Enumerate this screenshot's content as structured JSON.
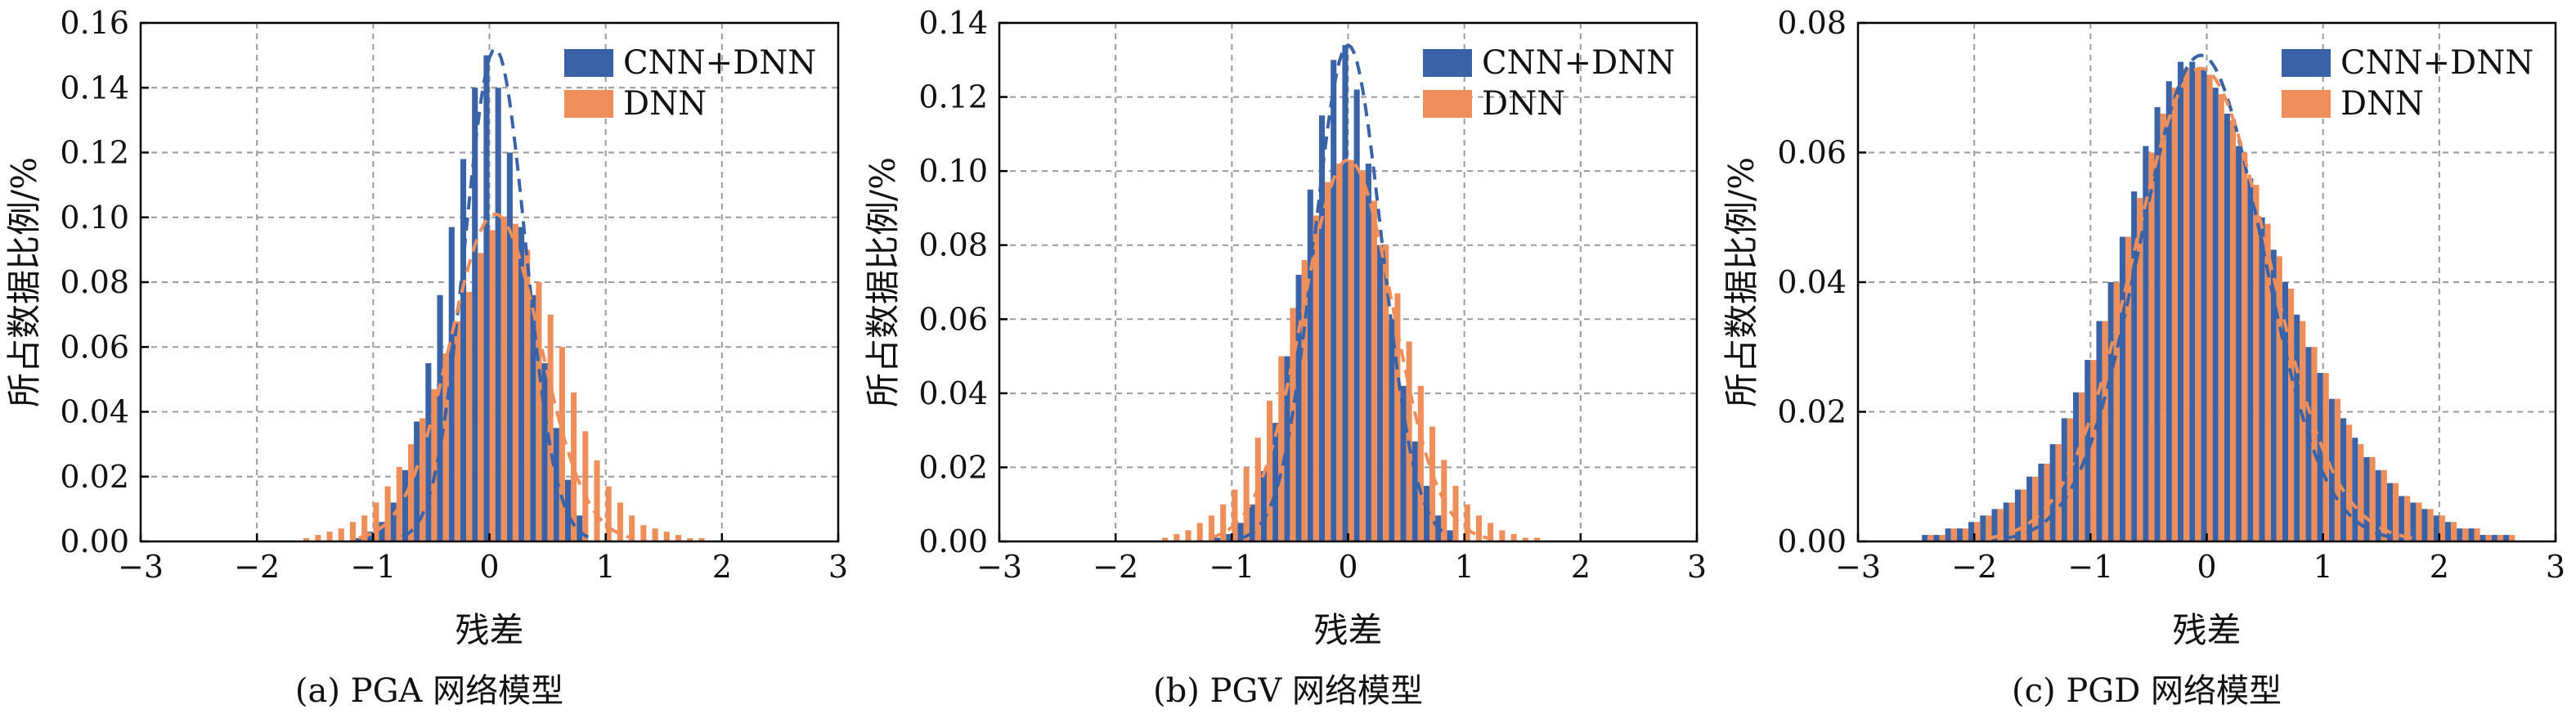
{
  "figure": {
    "panels": [
      {
        "caption": "(a) PGA 网络模型"
      },
      {
        "caption": "(b) PGV 网络模型"
      },
      {
        "caption": "(c) PGD 网络模型"
      }
    ]
  },
  "colors": {
    "cnn_dnn": "#3a62a7",
    "dnn": "#ee8f5b"
  },
  "chart_data": [
    {
      "type": "bar",
      "title": "",
      "xlabel": "残差",
      "ylabel": "所占数据比例/%",
      "xlim": [
        -3,
        3
      ],
      "ylim": [
        0,
        0.16
      ],
      "xticks": [
        "−3",
        "−2",
        "−1",
        "0",
        "1",
        "2",
        "3"
      ],
      "yticks": [
        "0.00",
        "0.02",
        "0.04",
        "0.06",
        "0.08",
        "0.10",
        "0.12",
        "0.14",
        "0.16"
      ],
      "grid": true,
      "legend_position": "top-right",
      "bin_width": 0.1,
      "series": [
        {
          "name": "CNN+DNN",
          "color": "#3a62a7",
          "x": [
            -1.1,
            -1.0,
            -0.9,
            -0.8,
            -0.7,
            -0.6,
            -0.5,
            -0.4,
            -0.3,
            -0.2,
            -0.1,
            0.0,
            0.1,
            0.2,
            0.3,
            0.4,
            0.5,
            0.6,
            0.7,
            0.8
          ],
          "values": [
            0.001,
            0.003,
            0.006,
            0.012,
            0.022,
            0.037,
            0.055,
            0.076,
            0.097,
            0.118,
            0.14,
            0.15,
            0.14,
            0.12,
            0.097,
            0.076,
            0.055,
            0.035,
            0.019,
            0.008
          ]
        },
        {
          "name": "DNN",
          "color": "#ee8f5b",
          "x": [
            -1.6,
            -1.5,
            -1.4,
            -1.3,
            -1.2,
            -1.1,
            -1.0,
            -0.9,
            -0.8,
            -0.7,
            -0.6,
            -0.5,
            -0.4,
            -0.3,
            -0.2,
            -0.1,
            0.0,
            0.1,
            0.2,
            0.3,
            0.4,
            0.5,
            0.6,
            0.7,
            0.8,
            0.9,
            1.0,
            1.1,
            1.2,
            1.3,
            1.4,
            1.5,
            1.6,
            1.7,
            1.8
          ],
          "values": [
            0.001,
            0.002,
            0.003,
            0.004,
            0.006,
            0.008,
            0.012,
            0.017,
            0.023,
            0.03,
            0.038,
            0.047,
            0.058,
            0.068,
            0.077,
            0.089,
            0.096,
            0.1,
            0.098,
            0.09,
            0.08,
            0.07,
            0.06,
            0.046,
            0.034,
            0.025,
            0.017,
            0.012,
            0.008,
            0.005,
            0.004,
            0.003,
            0.002,
            0.001,
            0.001
          ]
        }
      ],
      "fit_curves": [
        {
          "series": "CNN+DNN",
          "mean": 0.05,
          "sd": 0.26,
          "peak": 0.152
        },
        {
          "series": "DNN",
          "mean": 0.05,
          "sd": 0.39,
          "peak": 0.101
        }
      ]
    },
    {
      "type": "bar",
      "title": "",
      "xlabel": "残差",
      "ylabel": "所占数据比例/%",
      "xlim": [
        -3,
        3
      ],
      "ylim": [
        0,
        0.14
      ],
      "xticks": [
        "−3",
        "−2",
        "−1",
        "0",
        "1",
        "2",
        "3"
      ],
      "yticks": [
        "0.00",
        "0.02",
        "0.04",
        "0.06",
        "0.08",
        "0.10",
        "0.12",
        "0.14"
      ],
      "grid": true,
      "legend_position": "top-right",
      "bin_width": 0.1,
      "series": [
        {
          "name": "CNN+DNN",
          "color": "#3a62a7",
          "x": [
            -1.1,
            -1.0,
            -0.9,
            -0.8,
            -0.7,
            -0.6,
            -0.5,
            -0.4,
            -0.3,
            -0.2,
            -0.1,
            0.0,
            0.1,
            0.2,
            0.3,
            0.4,
            0.5,
            0.6,
            0.7,
            0.8,
            0.9
          ],
          "values": [
            0.001,
            0.002,
            0.005,
            0.01,
            0.019,
            0.032,
            0.05,
            0.072,
            0.095,
            0.115,
            0.13,
            0.134,
            0.122,
            0.102,
            0.08,
            0.06,
            0.042,
            0.027,
            0.015,
            0.007,
            0.003
          ]
        },
        {
          "name": "DNN",
          "color": "#ee8f5b",
          "x": [
            -1.6,
            -1.5,
            -1.4,
            -1.3,
            -1.2,
            -1.1,
            -1.0,
            -0.9,
            -0.8,
            -0.7,
            -0.6,
            -0.5,
            -0.4,
            -0.3,
            -0.2,
            -0.1,
            0.0,
            0.1,
            0.2,
            0.3,
            0.4,
            0.5,
            0.6,
            0.7,
            0.8,
            0.9,
            1.0,
            1.1,
            1.2,
            1.3,
            1.4,
            1.5,
            1.6
          ],
          "values": [
            0.001,
            0.002,
            0.003,
            0.005,
            0.007,
            0.01,
            0.014,
            0.02,
            0.028,
            0.038,
            0.05,
            0.063,
            0.076,
            0.088,
            0.097,
            0.102,
            0.103,
            0.1,
            0.092,
            0.08,
            0.067,
            0.054,
            0.042,
            0.031,
            0.022,
            0.015,
            0.01,
            0.007,
            0.005,
            0.003,
            0.002,
            0.001,
            0.001
          ]
        }
      ],
      "fit_curves": [
        {
          "series": "CNN+DNN",
          "mean": 0.0,
          "sd": 0.29,
          "peak": 0.134
        },
        {
          "series": "DNN",
          "mean": 0.0,
          "sd": 0.39,
          "peak": 0.103
        }
      ]
    },
    {
      "type": "bar",
      "title": "",
      "xlabel": "残差",
      "ylabel": "所占数据比例/%",
      "xlim": [
        -3,
        3
      ],
      "ylim": [
        0,
        0.08
      ],
      "xticks": [
        "−3",
        "−2",
        "−1",
        "0",
        "1",
        "2",
        "3"
      ],
      "yticks": [
        "0.00",
        "0.02",
        "0.04",
        "0.06",
        "0.08"
      ],
      "grid": true,
      "legend_position": "top-right",
      "bin_width": 0.1,
      "series": [
        {
          "name": "CNN+DNN",
          "color": "#3a62a7",
          "x": [
            -2.4,
            -2.3,
            -2.2,
            -2.1,
            -2.0,
            -1.9,
            -1.8,
            -1.7,
            -1.6,
            -1.5,
            -1.4,
            -1.3,
            -1.2,
            -1.1,
            -1.0,
            -0.9,
            -0.8,
            -0.7,
            -0.6,
            -0.5,
            -0.4,
            -0.3,
            -0.2,
            -0.1,
            0.0,
            0.1,
            0.2,
            0.3,
            0.4,
            0.5,
            0.6,
            0.7,
            0.8,
            0.9,
            1.0,
            1.1,
            1.2,
            1.3,
            1.4,
            1.5,
            1.6,
            1.7,
            1.8,
            1.9,
            2.0,
            2.1,
            2.2,
            2.3,
            2.4,
            2.5,
            2.6
          ],
          "values": [
            0.001,
            0.001,
            0.002,
            0.002,
            0.003,
            0.004,
            0.005,
            0.006,
            0.008,
            0.01,
            0.012,
            0.015,
            0.019,
            0.023,
            0.028,
            0.034,
            0.04,
            0.047,
            0.054,
            0.061,
            0.067,
            0.071,
            0.074,
            0.074,
            0.073,
            0.07,
            0.066,
            0.061,
            0.056,
            0.05,
            0.045,
            0.04,
            0.035,
            0.03,
            0.026,
            0.022,
            0.019,
            0.016,
            0.013,
            0.011,
            0.009,
            0.007,
            0.006,
            0.005,
            0.004,
            0.003,
            0.002,
            0.002,
            0.001,
            0.001,
            0.001
          ]
        },
        {
          "name": "DNN",
          "color": "#ee8f5b",
          "x": [
            -2.4,
            -2.3,
            -2.2,
            -2.1,
            -2.0,
            -1.9,
            -1.8,
            -1.7,
            -1.6,
            -1.5,
            -1.4,
            -1.3,
            -1.2,
            -1.1,
            -1.0,
            -0.9,
            -0.8,
            -0.7,
            -0.6,
            -0.5,
            -0.4,
            -0.3,
            -0.2,
            -0.1,
            0.0,
            0.1,
            0.2,
            0.3,
            0.4,
            0.5,
            0.6,
            0.7,
            0.8,
            0.9,
            1.0,
            1.1,
            1.2,
            1.3,
            1.4,
            1.5,
            1.6,
            1.7,
            1.8,
            1.9,
            2.0,
            2.1,
            2.2,
            2.3,
            2.4,
            2.5,
            2.6
          ],
          "values": [
            0.001,
            0.001,
            0.002,
            0.002,
            0.003,
            0.004,
            0.005,
            0.006,
            0.008,
            0.01,
            0.012,
            0.015,
            0.019,
            0.023,
            0.028,
            0.034,
            0.04,
            0.047,
            0.053,
            0.06,
            0.066,
            0.07,
            0.073,
            0.073,
            0.072,
            0.069,
            0.065,
            0.06,
            0.055,
            0.049,
            0.044,
            0.039,
            0.034,
            0.03,
            0.026,
            0.022,
            0.018,
            0.015,
            0.013,
            0.011,
            0.009,
            0.007,
            0.006,
            0.005,
            0.004,
            0.003,
            0.002,
            0.002,
            0.001,
            0.001,
            0.001
          ]
        }
      ],
      "fit_curves": [
        {
          "series": "CNN+DNN",
          "mean": -0.05,
          "sd": 0.53,
          "peak": 0.075
        },
        {
          "series": "DNN",
          "mean": -0.05,
          "sd": 0.58,
          "peak": 0.073
        }
      ]
    }
  ]
}
